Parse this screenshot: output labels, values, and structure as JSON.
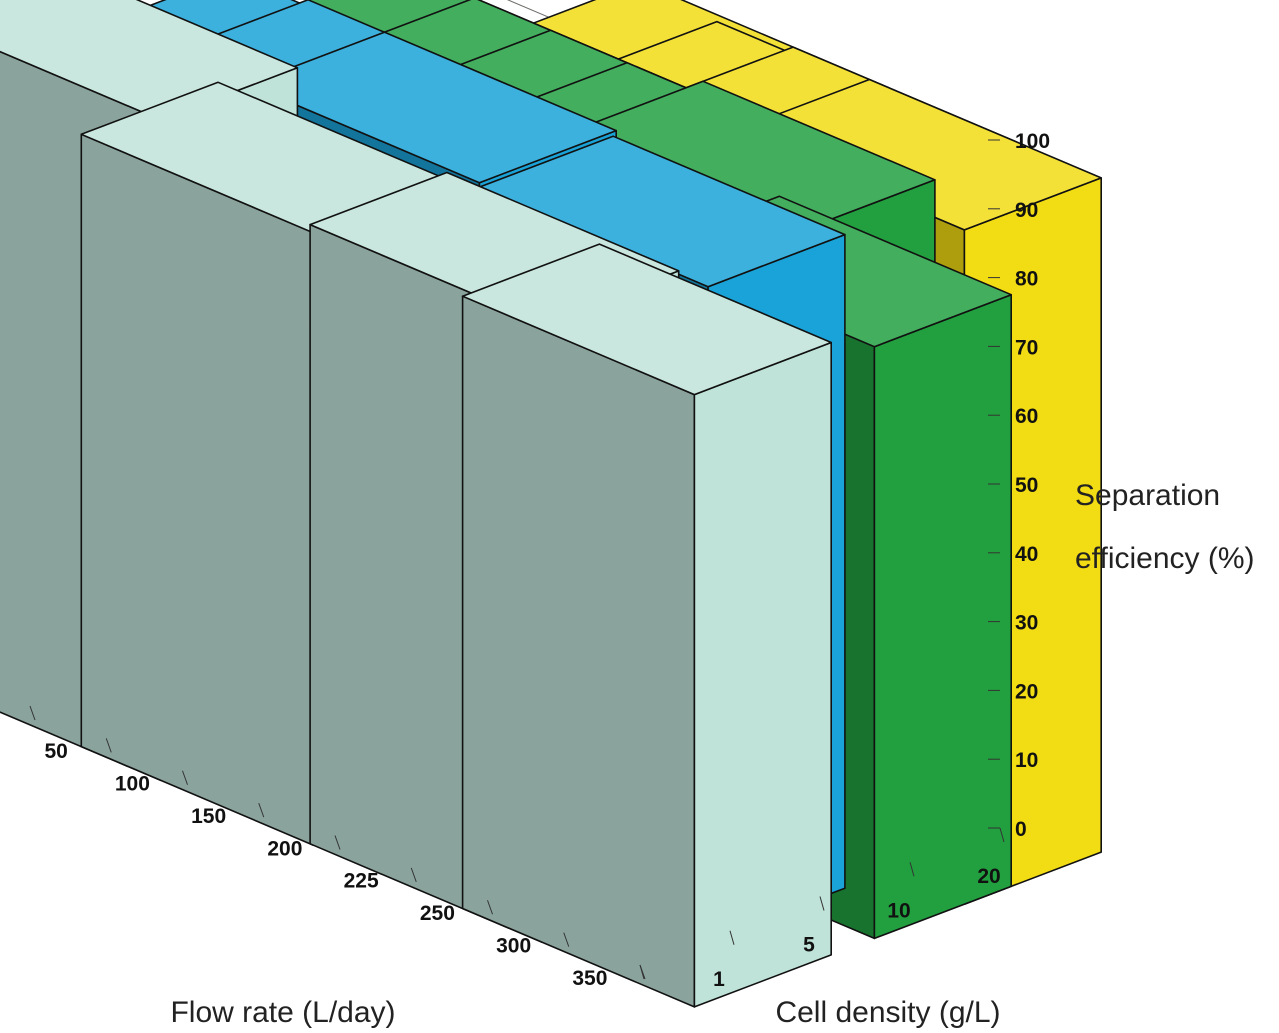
{
  "chart_data": {
    "type": "bar3d",
    "zlabel_lines": [
      "Separation",
      "efficiency (%)"
    ],
    "xlabel": "Flow rate (L/day)",
    "ylabel": "Cell density (g/L)",
    "zlim": [
      0,
      100
    ],
    "z_ticks": [
      "0",
      "10",
      "20",
      "30",
      "40",
      "50",
      "60",
      "70",
      "80",
      "90",
      "100"
    ],
    "flow_rates": [
      "50",
      "100",
      "150",
      "200",
      "225",
      "250",
      "300",
      "350"
    ],
    "cell_densities": [
      "1",
      "5",
      "10",
      "20"
    ],
    "colors": {
      "1": "#bfe3d8",
      "5": "#1aa3d8",
      "10": "#22a040",
      "20": "#f2dc14"
    },
    "bars": [
      {
        "flow": "50",
        "density": "1",
        "value": 96
      },
      {
        "flow": "150",
        "density": "1",
        "value": 89
      },
      {
        "flow": "250",
        "density": "1",
        "value": 90
      },
      {
        "flow": "350",
        "density": "1",
        "value": 89
      },
      {
        "flow": "100",
        "density": "5",
        "value": 95
      },
      {
        "flow": "150",
        "density": "5",
        "value": 96
      },
      {
        "flow": "200",
        "density": "5",
        "value": 96
      },
      {
        "flow": "300",
        "density": "5",
        "value": 95
      },
      {
        "flow": "150",
        "density": "10",
        "value": 96
      },
      {
        "flow": "200",
        "density": "10",
        "value": 96
      },
      {
        "flow": "225",
        "density": "10",
        "value": 96
      },
      {
        "flow": "250",
        "density": "10",
        "value": 96
      },
      {
        "flow": "300",
        "density": "10",
        "value": 98
      },
      {
        "flow": "350",
        "density": "10",
        "value": 86
      },
      {
        "flow": "225",
        "density": "20",
        "value": 98
      },
      {
        "flow": "250",
        "density": "20",
        "value": 97
      },
      {
        "flow": "300",
        "density": "20",
        "value": 98
      },
      {
        "flow": "350",
        "density": "20",
        "value": 98
      }
    ]
  }
}
